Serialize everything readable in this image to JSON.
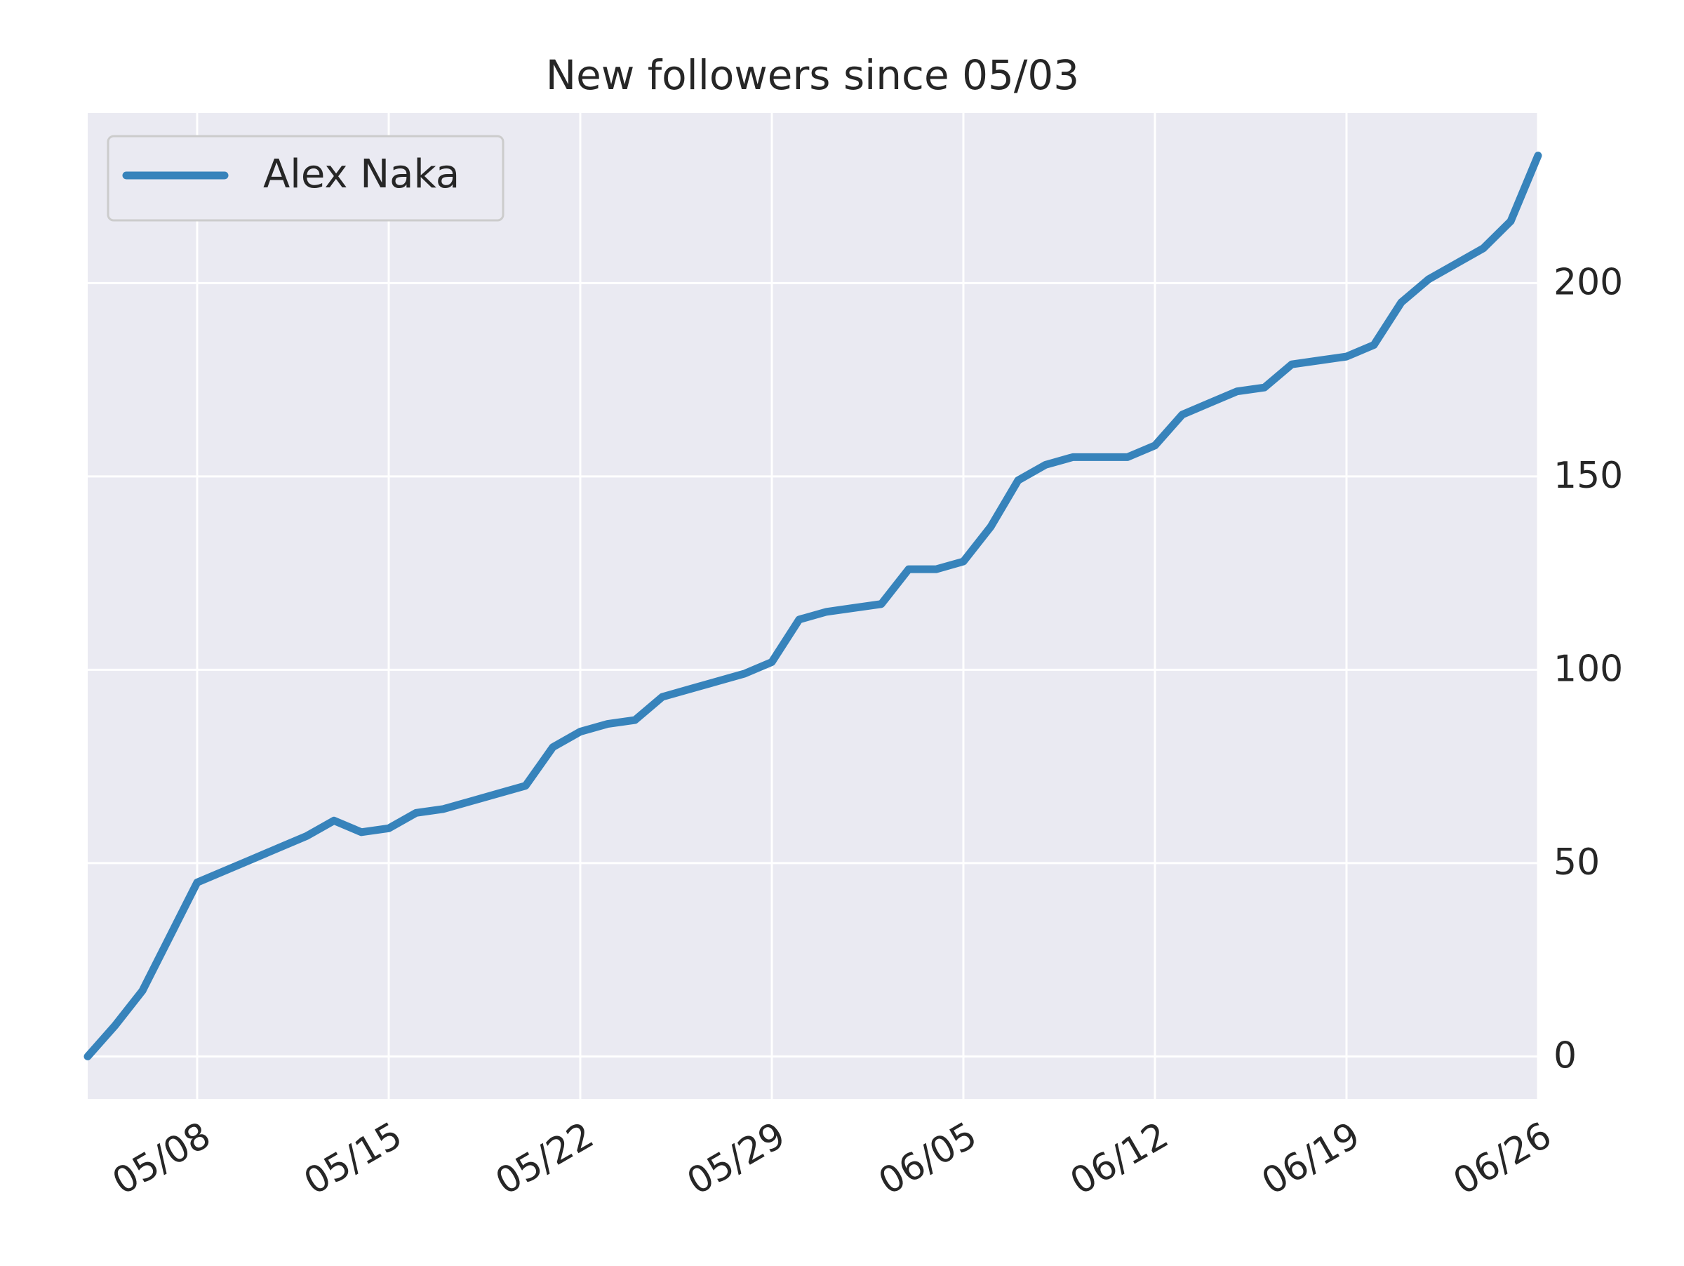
{
  "chart_data": {
    "type": "line",
    "title": "New followers since 05/03",
    "x": [
      "05/04",
      "05/05",
      "05/06",
      "05/07",
      "05/08",
      "05/09",
      "05/10",
      "05/11",
      "05/12",
      "05/13",
      "05/14",
      "05/15",
      "05/16",
      "05/17",
      "05/18",
      "05/19",
      "05/20",
      "05/21",
      "05/22",
      "05/23",
      "05/24",
      "05/25",
      "05/26",
      "05/27",
      "05/28",
      "05/29",
      "05/30",
      "05/31",
      "06/01",
      "06/02",
      "06/03",
      "06/04",
      "06/05",
      "06/06",
      "06/07",
      "06/08",
      "06/09",
      "06/10",
      "06/11",
      "06/12",
      "06/13",
      "06/14",
      "06/15",
      "06/16",
      "06/17",
      "06/18",
      "06/19",
      "06/20",
      "06/21",
      "06/22",
      "06/23",
      "06/24",
      "06/25",
      "06/26"
    ],
    "series": [
      {
        "name": "Alex Naka",
        "color": "#3783bb",
        "values": [
          0,
          8,
          17,
          31,
          45,
          48,
          51,
          54,
          57,
          61,
          58,
          59,
          63,
          64,
          66,
          68,
          70,
          80,
          84,
          86,
          87,
          93,
          95,
          97,
          99,
          102,
          113,
          115,
          116,
          117,
          126,
          126,
          128,
          137,
          149,
          153,
          155,
          155,
          155,
          158,
          166,
          169,
          172,
          173,
          179,
          180,
          181,
          184,
          195,
          201,
          205,
          209,
          216,
          233
        ]
      }
    ],
    "xlim": [
      "05/04",
      "06/26"
    ],
    "xticks": [
      "05/08",
      "05/15",
      "05/22",
      "05/29",
      "06/05",
      "06/12",
      "06/19",
      "06/26"
    ],
    "ylim": [
      -11,
      244
    ],
    "yticks": [
      0,
      50,
      100,
      150,
      200
    ],
    "y_axis_side": "right",
    "grid": true,
    "legend": "upper left"
  }
}
